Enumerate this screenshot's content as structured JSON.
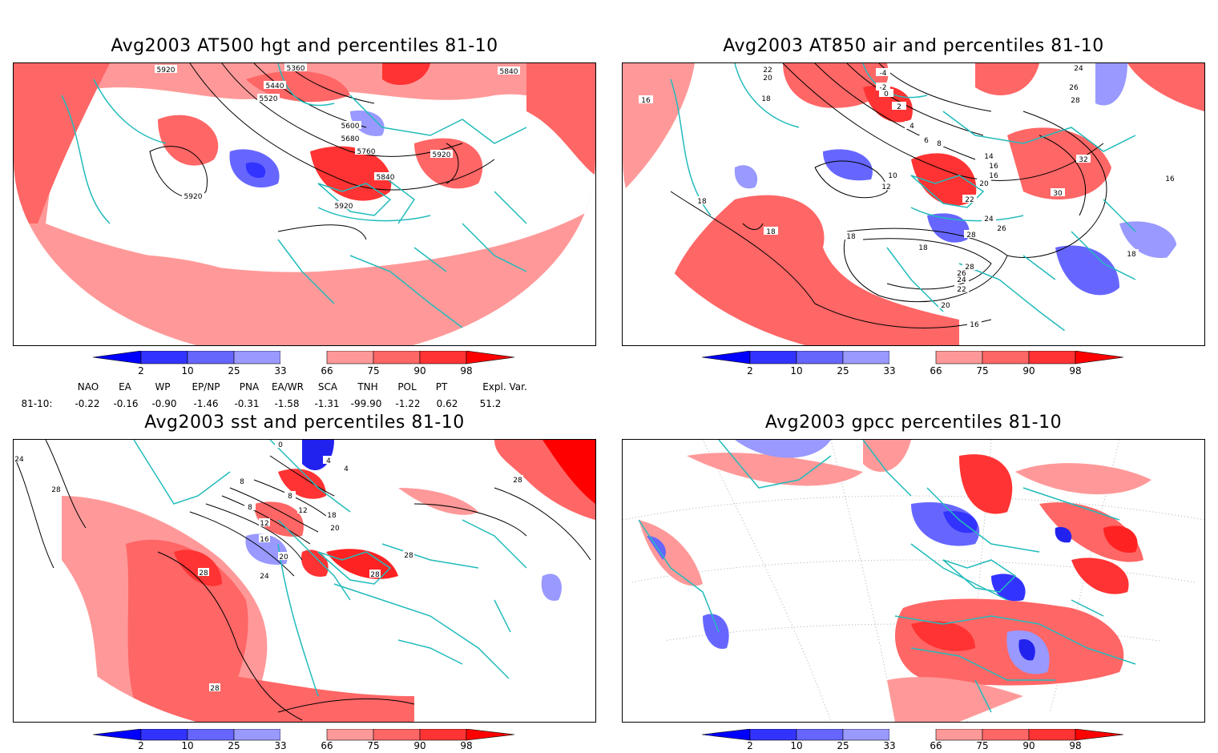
{
  "panels": [
    {
      "title": "Avg2003 AT500 hgt and percentiles 81-10",
      "contour_labels": [
        "5920",
        "5360",
        "5840",
        "5440",
        "5520",
        "5600",
        "5680",
        "5760",
        "5920",
        "5840",
        "5920",
        "5920"
      ]
    },
    {
      "title": "Avg2003 AT850 air and percentiles 81-10",
      "contour_labels": [
        "22",
        "20",
        "-4",
        "-2",
        "24",
        "26",
        "28",
        "18",
        "16",
        "0",
        "2",
        "4",
        "6",
        "8",
        "14",
        "16",
        "16",
        "10",
        "12",
        "20",
        "22",
        "32",
        "16",
        "18",
        "24",
        "26",
        "30",
        "28",
        "18",
        "28",
        "26",
        "24",
        "22",
        "20",
        "18",
        "18",
        "16",
        "18"
      ]
    },
    {
      "title": "Avg2003 sst and percentiles 81-10",
      "contour_labels": [
        "24",
        "28",
        "0",
        "4",
        "8",
        "4",
        "8",
        "8",
        "12",
        "18",
        "12",
        "16",
        "20",
        "20",
        "24",
        "28",
        "28",
        "28",
        "28",
        "28"
      ]
    },
    {
      "title": "Avg2003 gpcc percentiles 81-10",
      "contour_labels": []
    }
  ],
  "colorbar": {
    "labels": [
      "2",
      "10",
      "25",
      "33",
      "66",
      "75",
      "90",
      "98"
    ],
    "colors": [
      "#0000ff",
      "#3333ff",
      "#6666ff",
      "#9999ff",
      "#ffffff",
      "#ff9999",
      "#ff6666",
      "#ff3333",
      "#ff0000"
    ]
  },
  "indices": {
    "row_label": "81-10:",
    "names": [
      "NAO",
      "EA",
      "WP",
      "EP/NP",
      "PNA",
      "EA/WR",
      "SCA",
      "TNH",
      "POL",
      "PT",
      "Expl. Var."
    ],
    "values": [
      "-0.22",
      "-0.16",
      "-0.90",
      "-1.46",
      "-0.31",
      "-1.58",
      "-1.31",
      "-99.90",
      "-1.22",
      "0.62",
      "51.2"
    ]
  },
  "colors": {
    "coast": "#22bbbb",
    "red_light": "#ff9999",
    "red_mid": "#ff6666",
    "red_dark": "#ff2222",
    "blue_light": "#9999ff",
    "blue_mid": "#5555ff",
    "blue_dark": "#2222ee"
  }
}
